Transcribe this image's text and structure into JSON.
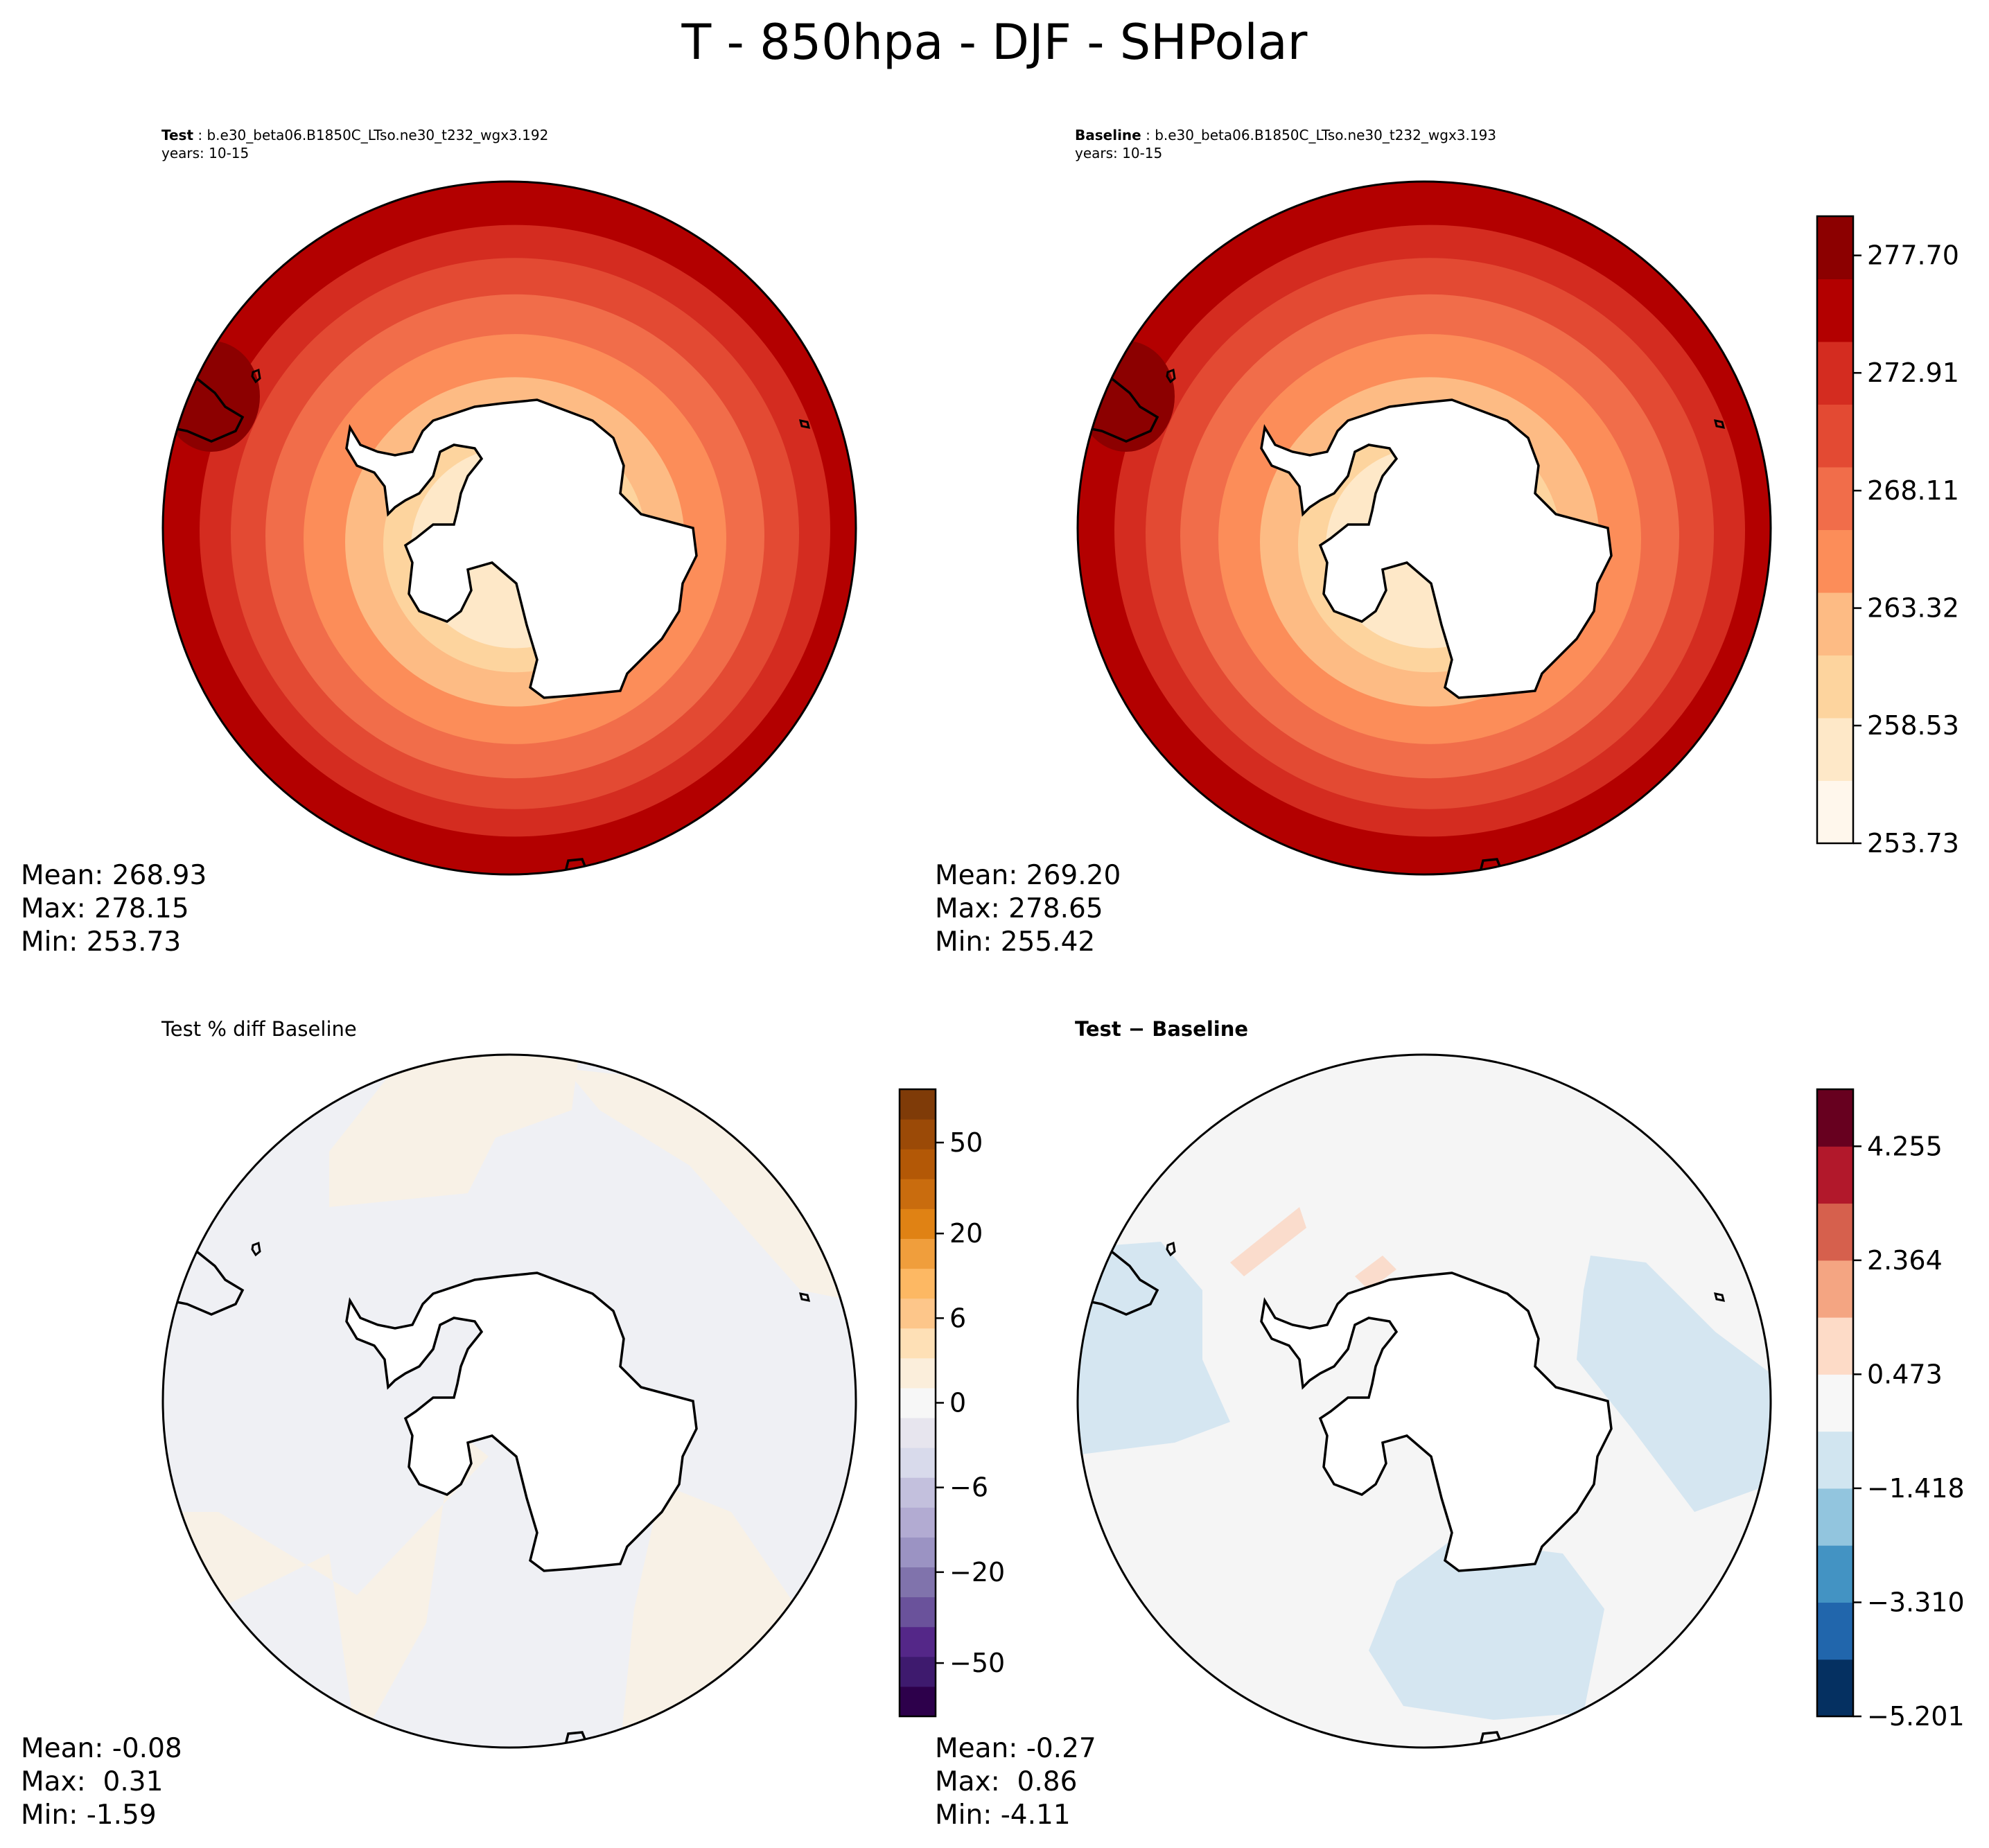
{
  "title": "T - 850hpa - DJF - SHPolar",
  "panels": {
    "test": {
      "label": "Test",
      "case": "b.e30_beta06.B1850C_LTso.ne30_t232_wgx3.192",
      "years": "years: 10-15",
      "mean": "Mean: 268.93",
      "max": "Max: 278.15",
      "min": "Min: 253.73"
    },
    "baseline": {
      "label": "Baseline",
      "case": "b.e30_beta06.B1850C_LTso.ne30_t232_wgx3.193",
      "years": "years: 10-15",
      "mean": "Mean: 269.20",
      "max": "Max: 278.65",
      "min": "Min: 255.42"
    },
    "pctdiff": {
      "title": "Test % diff Baseline",
      "mean": "Mean: -0.08",
      "max": "Max:  0.31",
      "min": "Min: -1.59"
    },
    "diff": {
      "title": "Test − Baseline",
      "mean": "Mean: -0.27",
      "max": "Max:  0.86",
      "min": "Min: -4.11"
    }
  },
  "chart_data": [
    {
      "type": "heatmap",
      "title": "Test",
      "subtitle": "b.e30_beta06.B1850C_LTso.ne30_t232_wgx3.192",
      "projection": "south-polar-stereographic",
      "field": "T at 850 hPa, DJF",
      "stats": {
        "mean": 268.93,
        "max": 278.15,
        "min": 253.73
      }
    },
    {
      "type": "heatmap",
      "title": "Baseline",
      "subtitle": "b.e30_beta06.B1850C_LTso.ne30_t232_wgx3.193",
      "projection": "south-polar-stereographic",
      "field": "T at 850 hPa, DJF",
      "stats": {
        "mean": 269.2,
        "max": 278.65,
        "min": 255.42
      },
      "colorbar": {
        "colormap": "OrRd",
        "levels": [
          253.73,
          255.33,
          256.93,
          258.53,
          260.13,
          261.72,
          263.32,
          264.92,
          266.52,
          268.11,
          269.71,
          271.31,
          272.91,
          274.51,
          276.1,
          277.7,
          279.3
        ],
        "ticks": [
          "253.73",
          "258.53",
          "263.32",
          "268.11",
          "272.91",
          "277.70"
        ],
        "colors": [
          "#fff7ec",
          "#fee8c8",
          "#fdd49e",
          "#fdbb84",
          "#fc8d59",
          "#f16d4a",
          "#e34a33",
          "#d42c20",
          "#b30000",
          "#8c0000"
        ]
      }
    },
    {
      "type": "heatmap",
      "title": "Test % diff Baseline",
      "projection": "south-polar-stereographic",
      "stats": {
        "mean": -0.08,
        "max": 0.31,
        "min": -1.59
      },
      "colorbar": {
        "colormap": "PuOr_r",
        "ticks": [
          "50",
          "20",
          "6",
          "0",
          "−6",
          "−20",
          "−50"
        ],
        "tick_values": [
          50,
          20,
          6,
          0,
          -6,
          -20,
          -50
        ],
        "colors": [
          "#7f3b08",
          "#9b4a07",
          "#b35806",
          "#c96c0e",
          "#e08214",
          "#f09e3c",
          "#fdb863",
          "#fdc68a",
          "#fee0b6",
          "#fbeedb",
          "#f7f7f7",
          "#e7e5ee",
          "#d8daeb",
          "#c3c0dd",
          "#b2abd2",
          "#9b93c3",
          "#8073ac",
          "#6a529b",
          "#542788",
          "#3e1a6e",
          "#2d004b"
        ]
      }
    },
    {
      "type": "heatmap",
      "title": "Test − Baseline",
      "projection": "south-polar-stereographic",
      "stats": {
        "mean": -0.27,
        "max": 0.86,
        "min": -4.11
      },
      "colorbar": {
        "colormap": "RdBu_r",
        "levels": [
          -5.201,
          -4.255,
          -3.31,
          -2.364,
          -1.418,
          -0.473,
          0.473,
          1.418,
          2.364,
          3.31,
          4.255,
          5.201
        ],
        "ticks": [
          "4.255",
          "2.364",
          "0.473",
          "−1.418",
          "−3.310",
          "−5.201"
        ],
        "colors": [
          "#053061",
          "#2166ac",
          "#4393c3",
          "#92c5de",
          "#d1e5f0",
          "#f7f7f7",
          "#fddbc7",
          "#f4a582",
          "#d6604d",
          "#b2182b",
          "#67001f"
        ]
      }
    }
  ]
}
